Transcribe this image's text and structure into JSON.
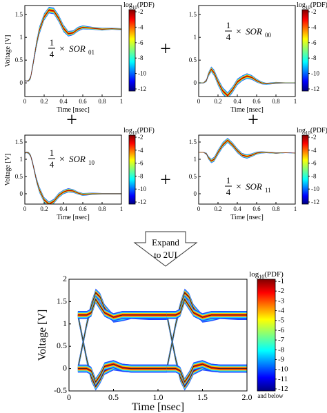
{
  "figure": {
    "operators": [
      "+",
      "+",
      "+",
      "+"
    ],
    "expand_label_line1": "Expand",
    "expand_label_line2": "to 2UI"
  },
  "chart_data": [
    {
      "id": "sor01",
      "type": "heatmap",
      "subtype": "eye-diagram",
      "annotation": {
        "frac_num": "1",
        "frac_den": "4",
        "times": "×",
        "sym": "SOR",
        "sub": "01"
      },
      "xlabel": "Time [nsec]",
      "ylabel": "Voltage [V]",
      "xlim": [
        0,
        1
      ],
      "ylim": [
        -0.3,
        1.7
      ],
      "x_ticks": [
        0,
        0.2,
        0.4,
        0.6,
        0.8,
        1
      ],
      "x_tick_labels": [
        "0",
        "0.2",
        "0.4",
        "0.6",
        "0.8",
        "1"
      ],
      "y_ticks": [
        0,
        0.5,
        1,
        1.5
      ],
      "y_tick_labels": [
        "0",
        "0.5",
        "1",
        "1.5"
      ],
      "colorbar": {
        "label": "log10(PDF)",
        "ticks": [
          -2,
          -4,
          -6,
          -8,
          -10,
          -12
        ],
        "tick_labels": [
          "-2",
          "-4",
          "-6",
          "-8",
          "-10",
          "-12"
        ]
      },
      "trace": {
        "x": [
          0,
          0.02,
          0.04,
          0.06,
          0.08,
          0.1,
          0.12,
          0.15,
          0.2,
          0.25,
          0.3,
          0.35,
          0.4,
          0.45,
          0.5,
          0.55,
          0.6,
          0.7,
          0.8,
          0.9,
          1
        ],
        "y": [
          0.05,
          0.04,
          0.05,
          0.12,
          0.35,
          0.6,
          0.85,
          1.15,
          1.45,
          1.6,
          1.58,
          1.42,
          1.2,
          1.08,
          1.1,
          1.18,
          1.22,
          1.2,
          1.18,
          1.19,
          1.18
        ],
        "spread": [
          0.01,
          0.01,
          0.02,
          0.04,
          0.06,
          0.07,
          0.08,
          0.09,
          0.08,
          0.07,
          0.07,
          0.08,
          0.08,
          0.06,
          0.05,
          0.05,
          0.04,
          0.03,
          0.03,
          0.02,
          0.02
        ]
      }
    },
    {
      "id": "sor00",
      "type": "heatmap",
      "subtype": "eye-diagram",
      "annotation": {
        "frac_num": "1",
        "frac_den": "4",
        "times": "×",
        "sym": "SOR",
        "sub": "00"
      },
      "xlabel": "Time [nsec]",
      "ylabel": "",
      "xlim": [
        0,
        1
      ],
      "ylim": [
        -0.3,
        1.7
      ],
      "x_ticks": [
        0,
        0.2,
        0.4,
        0.6,
        0.8,
        1
      ],
      "x_tick_labels": [
        "0",
        "0.2",
        "0.4",
        "0.6",
        "0.8",
        "1"
      ],
      "y_ticks": [
        0,
        0.5,
        1,
        1.5
      ],
      "y_tick_labels": [
        "0",
        "0.5",
        "1",
        "1.5"
      ],
      "colorbar": {
        "label": "log10(PDF)",
        "ticks": [
          -2,
          -4,
          -6,
          -8,
          -10,
          -12
        ],
        "tick_labels": [
          "-2",
          "-4",
          "-6",
          "-8",
          "-10",
          "-12"
        ]
      },
      "trace": {
        "x": [
          0,
          0.05,
          0.08,
          0.1,
          0.13,
          0.16,
          0.2,
          0.25,
          0.3,
          0.35,
          0.4,
          0.45,
          0.5,
          0.55,
          0.6,
          0.65,
          0.7,
          0.8,
          0.9,
          1
        ],
        "y": [
          0.0,
          0.0,
          0.05,
          0.18,
          0.3,
          0.22,
          0.02,
          -0.18,
          -0.28,
          -0.15,
          0.02,
          0.1,
          0.15,
          0.12,
          0.05,
          0.0,
          -0.02,
          0.0,
          0.0,
          0.0
        ],
        "spread": [
          0.01,
          0.01,
          0.03,
          0.05,
          0.06,
          0.07,
          0.08,
          0.08,
          0.07,
          0.07,
          0.07,
          0.06,
          0.06,
          0.05,
          0.04,
          0.03,
          0.02,
          0.02,
          0.01,
          0.01
        ]
      }
    },
    {
      "id": "sor10",
      "type": "heatmap",
      "subtype": "eye-diagram",
      "annotation": {
        "frac_num": "1",
        "frac_den": "4",
        "times": "×",
        "sym": "SOR",
        "sub": "10"
      },
      "xlabel": "Time [nsec]",
      "ylabel": "Voltage [V]",
      "xlim": [
        0,
        1
      ],
      "ylim": [
        -0.3,
        1.7
      ],
      "x_ticks": [
        0,
        0.2,
        0.4,
        0.6,
        0.8,
        1
      ],
      "x_tick_labels": [
        "0",
        "0.2",
        "0.4",
        "0.6",
        "0.8",
        "1"
      ],
      "y_ticks": [
        0,
        0.5,
        1,
        1.5
      ],
      "y_tick_labels": [
        "0",
        "0.5",
        "1",
        "1.5"
      ],
      "colorbar": {
        "label": "log10(PDF)",
        "ticks": [
          -2,
          -4,
          -6,
          -8,
          -10,
          -12
        ],
        "tick_labels": [
          "-2",
          "-4",
          "-6",
          "-8",
          "-10",
          "-12"
        ]
      },
      "trace": {
        "x": [
          0,
          0.02,
          0.04,
          0.06,
          0.08,
          0.1,
          0.12,
          0.15,
          0.2,
          0.25,
          0.3,
          0.35,
          0.4,
          0.45,
          0.5,
          0.55,
          0.6,
          0.7,
          0.8,
          0.9,
          1
        ],
        "y": [
          1.18,
          1.2,
          1.18,
          1.1,
          0.9,
          0.65,
          0.4,
          0.12,
          -0.18,
          -0.3,
          -0.22,
          -0.05,
          0.05,
          0.1,
          0.08,
          0.02,
          -0.02,
          0.0,
          0.0,
          0.0,
          0.0
        ],
        "spread": [
          0.02,
          0.02,
          0.03,
          0.04,
          0.06,
          0.07,
          0.08,
          0.09,
          0.08,
          0.07,
          0.07,
          0.07,
          0.06,
          0.06,
          0.05,
          0.04,
          0.04,
          0.03,
          0.02,
          0.02,
          0.02
        ]
      }
    },
    {
      "id": "sor11",
      "type": "heatmap",
      "subtype": "eye-diagram",
      "annotation": {
        "frac_num": "1",
        "frac_den": "4",
        "times": "×",
        "sym": "SOR",
        "sub": "11"
      },
      "xlabel": "Time [nsec]",
      "ylabel": "",
      "xlim": [
        0,
        1
      ],
      "ylim": [
        -0.3,
        1.7
      ],
      "x_ticks": [
        0,
        0.2,
        0.4,
        0.6,
        0.8,
        1
      ],
      "x_tick_labels": [
        "0",
        "0.2",
        "0.4",
        "0.6",
        "0.8",
        "1"
      ],
      "y_ticks": [
        0,
        0.5,
        1,
        1.5
      ],
      "y_tick_labels": [
        "0",
        "0.5",
        "1",
        "1.5"
      ],
      "colorbar": {
        "label": "log10(PDF)",
        "ticks": [
          -2,
          -4,
          -6,
          -8,
          -10,
          -12
        ],
        "tick_labels": [
          "-2",
          "-4",
          "-6",
          "-8",
          "-10",
          "-12"
        ]
      },
      "trace": {
        "x": [
          0,
          0.05,
          0.08,
          0.1,
          0.13,
          0.16,
          0.2,
          0.25,
          0.3,
          0.35,
          0.4,
          0.45,
          0.5,
          0.55,
          0.6,
          0.65,
          0.7,
          0.8,
          0.9,
          1
        ],
        "y": [
          1.2,
          1.2,
          1.16,
          1.05,
          0.95,
          1.0,
          1.2,
          1.42,
          1.55,
          1.42,
          1.25,
          1.12,
          1.08,
          1.12,
          1.18,
          1.2,
          1.2,
          1.18,
          1.19,
          1.18
        ],
        "spread": [
          0.01,
          0.01,
          0.03,
          0.05,
          0.06,
          0.07,
          0.08,
          0.08,
          0.07,
          0.07,
          0.07,
          0.06,
          0.06,
          0.05,
          0.04,
          0.03,
          0.02,
          0.02,
          0.01,
          0.01
        ]
      }
    },
    {
      "id": "combined",
      "type": "heatmap",
      "subtype": "eye-diagram",
      "xlabel": "Time [nsec]",
      "ylabel": "Voltage [V]",
      "xlim": [
        0,
        2
      ],
      "ylim": [
        -0.5,
        2
      ],
      "x_ticks": [
        0,
        0.5,
        1,
        1.5,
        2
      ],
      "x_tick_labels": [
        "0",
        "0.5",
        "1.0",
        "1.5",
        "2.0"
      ],
      "y_ticks": [
        -0.5,
        0,
        0.5,
        1,
        1.5,
        2
      ],
      "y_tick_labels": [
        "-0.5",
        "0",
        "0.5",
        "1",
        "1.5",
        "2"
      ],
      "colorbar": {
        "label": "log10(PDF)",
        "ticks": [
          -1,
          -2,
          -3,
          -4,
          -5,
          -6,
          -7,
          -8,
          -9,
          -10,
          -11,
          -12
        ],
        "tick_labels": [
          "-1",
          "-2",
          "-3",
          "-4",
          "-5",
          "-6",
          "-7",
          "-8",
          "-9",
          "-10",
          "-11",
          "-12"
        ],
        "footnote": "and below"
      },
      "transitions": [
        {
          "name": "rise",
          "x": [
            0.1,
            0.15,
            0.2,
            0.25,
            0.3,
            0.35,
            0.4,
            0.5,
            0.6,
            0.7,
            0.8,
            0.9,
            1.0,
            1.1
          ],
          "y": [
            0.0,
            0.5,
            1.0,
            1.4,
            1.7,
            1.6,
            1.35,
            1.12,
            1.15,
            1.2,
            1.19,
            1.18,
            1.18,
            1.18
          ]
        },
        {
          "name": "fall",
          "x": [
            0.1,
            0.15,
            0.2,
            0.25,
            0.3,
            0.35,
            0.4,
            0.5,
            0.6,
            0.7,
            0.8,
            0.9,
            1.0,
            1.1
          ],
          "y": [
            1.2,
            0.7,
            0.2,
            -0.2,
            -0.4,
            -0.25,
            -0.05,
            0.05,
            0.02,
            0.0,
            0.0,
            0.0,
            0.0,
            0.0
          ]
        },
        {
          "name": "high-hold",
          "x": [
            0.1,
            0.2,
            0.25,
            0.3,
            0.35,
            0.4,
            0.5,
            0.6,
            0.7,
            0.8,
            0.9,
            1.0,
            1.1
          ],
          "y": [
            1.2,
            1.2,
            1.25,
            1.55,
            1.4,
            1.25,
            1.15,
            1.2,
            1.2,
            1.2,
            1.2,
            1.2,
            1.2
          ]
        },
        {
          "name": "low-hold",
          "x": [
            0.1,
            0.2,
            0.25,
            0.3,
            0.35,
            0.4,
            0.5,
            0.6,
            0.7,
            0.8,
            0.9,
            1.0,
            1.1
          ],
          "y": [
            0.0,
            0.0,
            -0.05,
            -0.3,
            -0.15,
            0.05,
            0.1,
            0.02,
            0.0,
            0.0,
            0.0,
            0.0,
            0.0
          ]
        }
      ]
    }
  ]
}
